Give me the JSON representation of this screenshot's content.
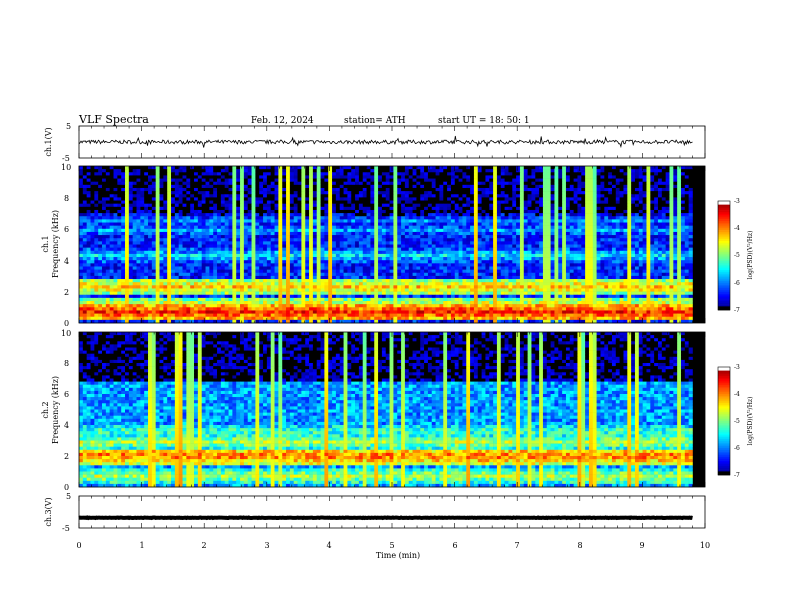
{
  "header": {
    "title": "VLF  Spectra",
    "date": "Feb. 12, 2024",
    "station": "station= ATH",
    "start": "start  UT  =   18: 50: 1"
  },
  "chart_data": [
    {
      "type": "line",
      "name": "ch1-voltage",
      "ylabel": "ch.1(V)",
      "ylim": [
        -5,
        5
      ],
      "yticks": [
        "5",
        "-5"
      ],
      "x_range_min": [
        0,
        9.8
      ],
      "baseline_v": 0,
      "noise_amplitude_v": 1.2,
      "color": "#000000"
    },
    {
      "type": "heatmap",
      "name": "ch1-spectrogram",
      "ylabel": "ch.1\nFrequency  (kHz)",
      "ylim_khz": [
        0,
        10
      ],
      "yticks": [
        "0",
        "2",
        "4",
        "6",
        "8",
        "10"
      ],
      "x_range_min": [
        0,
        9.8
      ],
      "bands_khz": [
        {
          "center": 0.7,
          "level": -3.6
        },
        {
          "center": 1.2,
          "level": -4.6
        },
        {
          "center": 2.3,
          "level": -4.3
        },
        {
          "center": 4.3,
          "level": -5.6
        },
        {
          "center": 5.9,
          "level": -5.9
        },
        {
          "center": 6.5,
          "level": -6.0
        }
      ],
      "background_level": -6.4,
      "high_freq_level": -6.9,
      "colorbar": {
        "label": "log(PSD)(V²/Hz)",
        "ticks": [
          "-3",
          "-4",
          "-5",
          "-6",
          "-7"
        ],
        "range": [
          -7,
          -3
        ]
      }
    },
    {
      "type": "heatmap",
      "name": "ch2-spectrogram",
      "ylabel": "ch.2\nFrequency  (kHz)",
      "ylim_khz": [
        0,
        10
      ],
      "yticks": [
        "0",
        "2",
        "4",
        "6",
        "8",
        "10"
      ],
      "x_range_min": [
        0,
        9.8
      ],
      "bands_khz": [
        {
          "center": 0.7,
          "level": -4.8
        },
        {
          "center": 2.0,
          "level": -3.9
        },
        {
          "center": 2.9,
          "level": -4.8
        },
        {
          "center": 3.6,
          "level": -5.2
        },
        {
          "center": 4.6,
          "level": -5.8
        },
        {
          "center": 5.5,
          "level": -6.1
        }
      ],
      "background_level": -5.9,
      "high_freq_level": -6.9,
      "colorbar": {
        "label": "log(PSD)(V²/Hz)",
        "ticks": [
          "-3",
          "-4",
          "-5",
          "-6",
          "-7"
        ],
        "range": [
          -7,
          -3
        ]
      }
    },
    {
      "type": "line",
      "name": "ch3-voltage",
      "ylabel": "ch.3(V)",
      "ylim": [
        -5,
        5
      ],
      "yticks": [
        "5",
        "-5"
      ],
      "x_range_min": [
        0,
        9.8
      ],
      "baseline_v": -1.8,
      "noise_amplitude_v": 0.15,
      "color": "#000000"
    }
  ],
  "xaxis": {
    "label": "Time  (min)",
    "range": [
      0,
      10
    ],
    "ticks": [
      "0",
      "1",
      "2",
      "3",
      "4",
      "5",
      "6",
      "7",
      "8",
      "9",
      "10"
    ]
  }
}
